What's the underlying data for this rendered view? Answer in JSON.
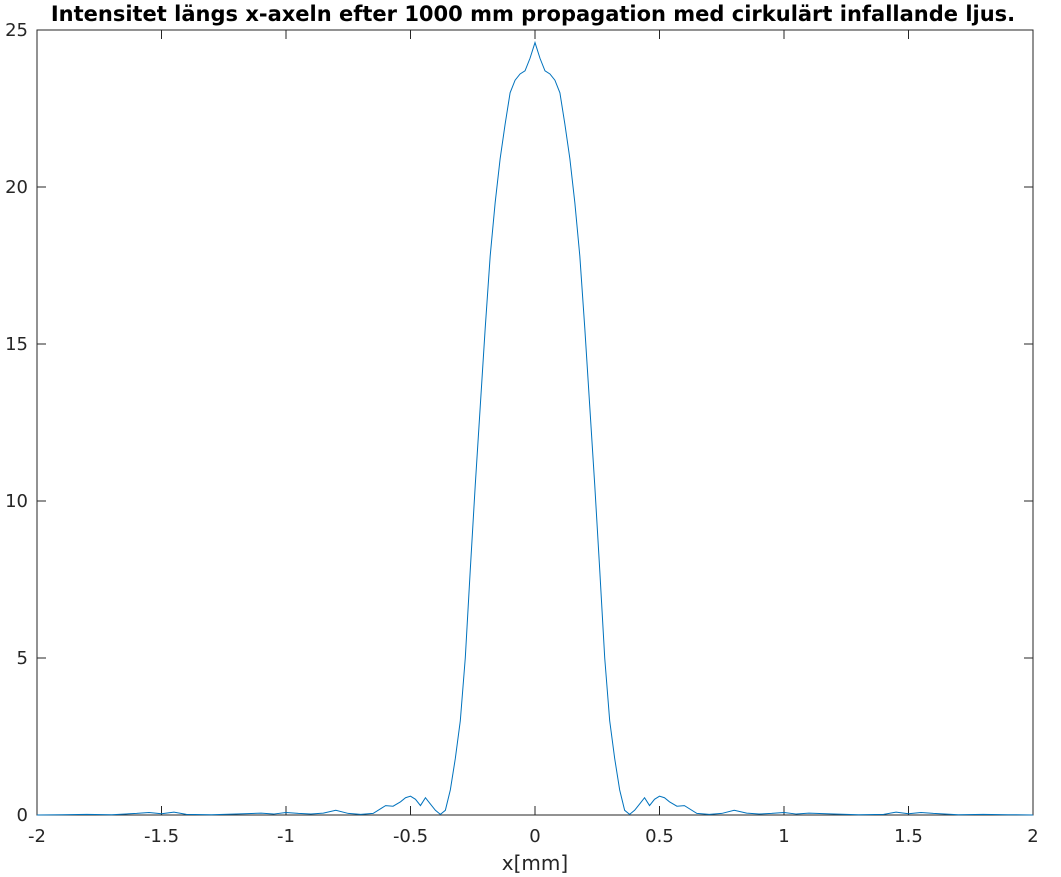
{
  "chart_data": {
    "type": "line",
    "title": "Intensitet längs x-axeln efter 1000 mm propagation med cirkulärt infallande ljus.",
    "xlabel": "x[mm]",
    "ylabel": "",
    "xlim": [
      -2,
      2
    ],
    "ylim": [
      0,
      25
    ],
    "xticks": [
      -2,
      -1.5,
      -1,
      -0.5,
      0,
      0.5,
      1,
      1.5,
      2
    ],
    "xtick_labels": [
      "-2",
      "-1.5",
      "-1",
      "-0.5",
      "0",
      "0.5",
      "1",
      "1.5",
      "2"
    ],
    "yticks": [
      0,
      5,
      10,
      15,
      20,
      25
    ],
    "ytick_labels": [
      "0",
      "5",
      "10",
      "15",
      "20",
      "25"
    ],
    "grid": false,
    "line_color": "#0072bd",
    "series": [
      {
        "x": [
          -2.0,
          -1.9,
          -1.8,
          -1.7,
          -1.6,
          -1.55,
          -1.5,
          -1.45,
          -1.4,
          -1.3,
          -1.2,
          -1.1,
          -1.05,
          -1.0,
          -0.95,
          -0.9,
          -0.85,
          -0.8,
          -0.75,
          -0.7,
          -0.65,
          -0.6,
          -0.57,
          -0.54,
          -0.52,
          -0.5,
          -0.48,
          -0.46,
          -0.44,
          -0.42,
          -0.4,
          -0.38,
          -0.36,
          -0.34,
          -0.32,
          -0.3,
          -0.28,
          -0.26,
          -0.24,
          -0.22,
          -0.2,
          -0.18,
          -0.16,
          -0.14,
          -0.12,
          -0.1,
          -0.08,
          -0.06,
          -0.04,
          -0.02,
          0.0,
          0.02,
          0.04,
          0.06,
          0.08,
          0.1,
          0.12,
          0.14,
          0.16,
          0.18,
          0.2,
          0.22,
          0.24,
          0.26,
          0.28,
          0.3,
          0.32,
          0.34,
          0.36,
          0.38,
          0.4,
          0.42,
          0.44,
          0.46,
          0.48,
          0.5,
          0.52,
          0.54,
          0.57,
          0.6,
          0.65,
          0.7,
          0.75,
          0.8,
          0.85,
          0.9,
          0.95,
          1.0,
          1.05,
          1.1,
          1.2,
          1.3,
          1.4,
          1.45,
          1.5,
          1.55,
          1.6,
          1.7,
          1.8,
          1.9,
          2.0
        ],
        "y": [
          0.0,
          0.01,
          0.02,
          0.01,
          0.05,
          0.08,
          0.04,
          0.09,
          0.02,
          0.01,
          0.03,
          0.06,
          0.03,
          0.08,
          0.05,
          0.03,
          0.06,
          0.15,
          0.05,
          0.02,
          0.05,
          0.3,
          0.28,
          0.42,
          0.55,
          0.6,
          0.5,
          0.3,
          0.55,
          0.35,
          0.15,
          0.02,
          0.15,
          0.8,
          1.8,
          3.0,
          5.0,
          7.8,
          10.5,
          13.0,
          15.5,
          17.8,
          19.5,
          20.9,
          22.0,
          23.0,
          23.4,
          23.6,
          23.7,
          24.1,
          24.6,
          24.1,
          23.7,
          23.6,
          23.4,
          23.0,
          22.0,
          20.9,
          19.5,
          17.8,
          15.5,
          13.0,
          10.5,
          7.8,
          5.0,
          3.0,
          1.8,
          0.8,
          0.15,
          0.02,
          0.15,
          0.35,
          0.55,
          0.3,
          0.5,
          0.6,
          0.55,
          0.42,
          0.28,
          0.3,
          0.05,
          0.02,
          0.05,
          0.15,
          0.06,
          0.03,
          0.05,
          0.08,
          0.03,
          0.06,
          0.03,
          0.01,
          0.02,
          0.09,
          0.04,
          0.08,
          0.05,
          0.01,
          0.02,
          0.01,
          0.0
        ]
      }
    ]
  }
}
